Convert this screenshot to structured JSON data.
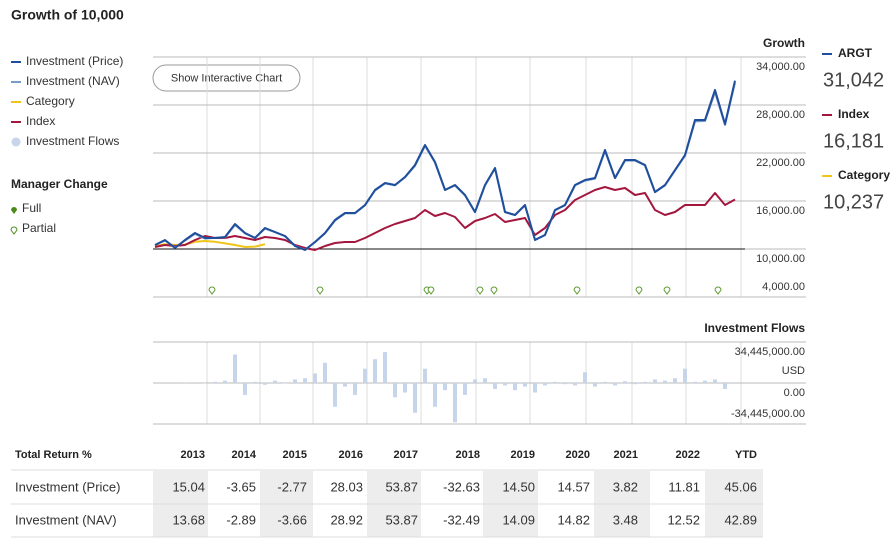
{
  "title": "Growth of 10,000",
  "button": "Show Interactive Chart",
  "manager_change": {
    "title": "Manager Change",
    "full": "Full",
    "partial": "Partial"
  },
  "chart_data": [
    {
      "type": "line",
      "title": "Growth",
      "ylim": [
        4000,
        34000
      ],
      "yticks": [
        {
          "value": 34000,
          "label": "34,000.00"
        },
        {
          "value": 28000,
          "label": "28,000.00"
        },
        {
          "value": 22000,
          "label": "22,000.00"
        },
        {
          "value": 16000,
          "label": "16,000.00"
        },
        {
          "value": 10000,
          "label": "10,000.00"
        },
        {
          "value": 4000,
          "label": "4,000.00"
        }
      ],
      "baseline": 10000,
      "series": [
        {
          "name": "Investment (Price)",
          "color": "#1f4e9c",
          "values": [
            10500,
            11125,
            10125,
            11125,
            12000,
            11375,
            11375,
            11500,
            13125,
            12000,
            11375,
            12625,
            12125,
            11625,
            10375,
            9875,
            10875,
            12000,
            13625,
            14500,
            14500,
            15500,
            17375,
            18250,
            18000,
            19000,
            20500,
            23000,
            20875,
            17375,
            18000,
            16750,
            14625,
            18000,
            20125,
            14625,
            14250,
            15500,
            11125,
            11750,
            14875,
            15500,
            18000,
            18625,
            18875,
            22375,
            18875,
            21125,
            21125,
            20500,
            17125,
            18000,
            19875,
            21750,
            26125,
            26125,
            29875,
            25625,
            31042
          ]
        },
        {
          "name": "Investment (NAV)",
          "color": "#7a9cc9",
          "values": [
            10500,
            11050,
            10200,
            11050,
            11900,
            11300,
            11400,
            11450,
            13000,
            11950,
            11400,
            12550,
            12100,
            11600,
            10400,
            9900,
            10850,
            11950,
            13550,
            14450,
            14450,
            15450,
            17300,
            18200,
            17950,
            18950,
            20400,
            22900,
            20800,
            17400,
            17950,
            16700,
            14600,
            17950,
            20050,
            14600,
            14250,
            15450,
            11150,
            11750,
            14850,
            15450,
            17950,
            18550,
            18800,
            22250,
            18850,
            21050,
            21050,
            20450,
            17100,
            17950,
            19800,
            21650,
            25950,
            26000,
            29600,
            25500,
            30800
          ]
        },
        {
          "name": "Category",
          "color": "#f0c419",
          "values": [
            10400,
            10600,
            10500,
            10550,
            10900,
            11000,
            10900,
            10700,
            10500,
            10250,
            10300,
            10600,
            null,
            null,
            null,
            null,
            null,
            null,
            null,
            null,
            null,
            null,
            null,
            null,
            null,
            null,
            null,
            null,
            null,
            null,
            null,
            null,
            null,
            null,
            null,
            null,
            null,
            null,
            null,
            null,
            null,
            null,
            null,
            null,
            null,
            null,
            null,
            null,
            null,
            null,
            null,
            null,
            null,
            null,
            null,
            null,
            null,
            null,
            null
          ]
        },
        {
          "name": "Index",
          "color": "#a3173f",
          "values": [
            10250,
            10500,
            10375,
            10500,
            11125,
            11625,
            11375,
            11375,
            11625,
            11375,
            11125,
            11500,
            11375,
            11125,
            10500,
            10125,
            9875,
            10375,
            10750,
            10875,
            10875,
            11375,
            12000,
            12625,
            13125,
            13500,
            13875,
            14875,
            14125,
            14500,
            14000,
            12625,
            13500,
            13875,
            14375,
            13375,
            13625,
            13875,
            11750,
            12625,
            14250,
            14875,
            16125,
            16750,
            17375,
            17750,
            17375,
            17625,
            16750,
            17000,
            14875,
            14250,
            14625,
            15500,
            15500,
            15500,
            17000,
            15500,
            16181
          ]
        }
      ]
    },
    {
      "type": "bar",
      "title": "Investment Flows",
      "y_label": "USD",
      "ylim": [
        -34445000,
        34445000
      ],
      "yticks": [
        {
          "value": 34445000,
          "label": "34,445,000.00"
        },
        {
          "value": 0,
          "label": "0.00"
        },
        {
          "value": -34445000,
          "label": "-34,445,000.00"
        }
      ],
      "series": [
        {
          "name": "Investment Flows",
          "color": "#c7d5ea",
          "values": [
            0,
            0,
            0,
            500000,
            0,
            -500000,
            1000000,
            2000000,
            24000000,
            -10000000,
            1000000,
            -1500000,
            2000000,
            -500000,
            3000000,
            4000000,
            8000000,
            17000000,
            -20000000,
            -3000000,
            -10000000,
            12000000,
            20000000,
            26000000,
            -12000000,
            -8000000,
            -25000000,
            12000000,
            -20000000,
            -6000000,
            -33000000,
            -10000000,
            3000000,
            4000000,
            -5000000,
            -2000000,
            -6000000,
            -3000000,
            -8000000,
            -2000000,
            1000000,
            -1000000,
            -2000000,
            9000000,
            -3000000,
            1000000,
            -2000000,
            1500000,
            -1000000,
            1000000,
            3000000,
            2000000,
            4000000,
            12000000,
            1000000,
            2000000,
            3000000,
            -5000000,
            0
          ]
        }
      ]
    }
  ],
  "summary": [
    {
      "name": "ARGT",
      "value": "31,042",
      "color": "#1f4e9c"
    },
    {
      "name": "Index",
      "value": "16,181",
      "color": "#a3173f"
    },
    {
      "name": "Category",
      "value": "10,237",
      "color": "#f0c419"
    }
  ],
  "table": {
    "header": [
      "Total Return %",
      "2013",
      "2014",
      "2015",
      "2016",
      "2017",
      "2018",
      "2019",
      "2020",
      "2021",
      "2022",
      "YTD"
    ],
    "rows": [
      [
        "Investment (Price)",
        "15.04",
        "-3.65",
        "-2.77",
        "28.03",
        "53.87",
        "-32.63",
        "14.50",
        "14.57",
        "3.82",
        "11.81",
        "45.06"
      ],
      [
        "Investment (NAV)",
        "13.68",
        "-2.89",
        "-3.66",
        "28.92",
        "53.87",
        "-32.49",
        "14.09",
        "14.82",
        "3.48",
        "12.52",
        "42.89"
      ]
    ]
  }
}
